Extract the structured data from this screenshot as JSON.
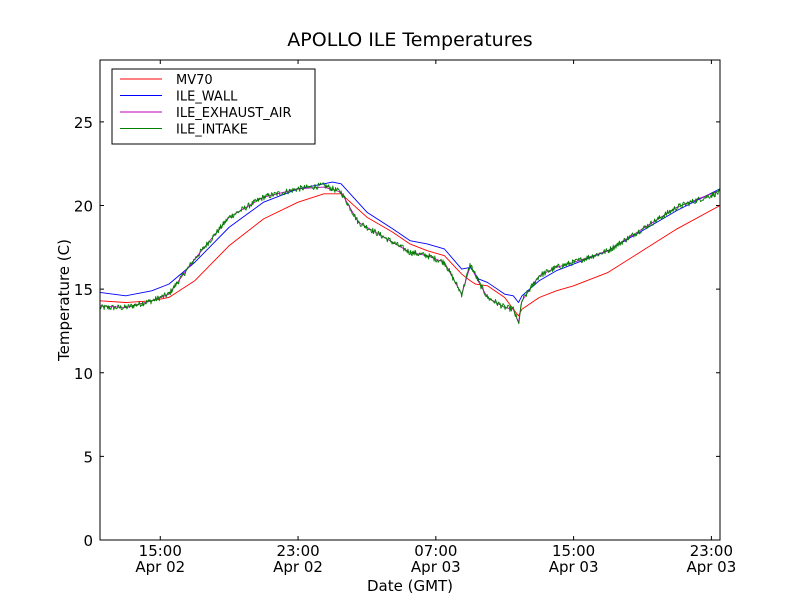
{
  "chart_data": {
    "type": "line",
    "title": "APOLLO ILE Temperatures",
    "xlabel": "Date (GMT)",
    "ylabel": "Temperature (C)",
    "xlim": [
      11.5,
      47.5
    ],
    "ylim": [
      0,
      28.7
    ],
    "yticks": [
      0,
      5,
      10,
      15,
      20,
      25
    ],
    "xticks": [
      {
        "x": 15,
        "line1": "15:00",
        "line2": "Apr 02"
      },
      {
        "x": 23,
        "line1": "23:00",
        "line2": "Apr 02"
      },
      {
        "x": 31,
        "line1": "07:00",
        "line2": "Apr 03"
      },
      {
        "x": 39,
        "line1": "15:00",
        "line2": "Apr 03"
      },
      {
        "x": 47,
        "line1": "23:00",
        "line2": "Apr 03"
      }
    ],
    "legend_position": "top-left",
    "series": [
      {
        "name": "MV70",
        "color": "#ff0000",
        "noise": 0,
        "points": [
          [
            11.5,
            14.3
          ],
          [
            13,
            14.2
          ],
          [
            14.5,
            14.3
          ],
          [
            15.5,
            14.5
          ],
          [
            17,
            15.5
          ],
          [
            19,
            17.6
          ],
          [
            21,
            19.2
          ],
          [
            23,
            20.2
          ],
          [
            24.5,
            20.7
          ],
          [
            25.5,
            20.7
          ],
          [
            27,
            19.3
          ],
          [
            28.5,
            18.4
          ],
          [
            29.5,
            17.7
          ],
          [
            30.5,
            17.3
          ],
          [
            31.5,
            17.0
          ],
          [
            32.5,
            15.9
          ],
          [
            33,
            15.5
          ],
          [
            33.3,
            15.3
          ],
          [
            34,
            15.2
          ],
          [
            35,
            14.5
          ],
          [
            35.5,
            13.8
          ],
          [
            35.8,
            13.4
          ],
          [
            36,
            13.8
          ],
          [
            37,
            14.5
          ],
          [
            38,
            14.9
          ],
          [
            39,
            15.2
          ],
          [
            41,
            16.0
          ],
          [
            43,
            17.3
          ],
          [
            45,
            18.6
          ],
          [
            47.5,
            20.0
          ]
        ]
      },
      {
        "name": "ILE_WALL",
        "color": "#0000ff",
        "noise": 0,
        "points": [
          [
            11.5,
            14.8
          ],
          [
            13,
            14.6
          ],
          [
            14.5,
            14.9
          ],
          [
            15.5,
            15.3
          ],
          [
            17,
            16.6
          ],
          [
            19,
            18.7
          ],
          [
            21,
            20.2
          ],
          [
            23,
            21.0
          ],
          [
            24.5,
            21.3
          ],
          [
            25,
            21.4
          ],
          [
            25.5,
            21.3
          ],
          [
            27,
            19.6
          ],
          [
            28.5,
            18.6
          ],
          [
            29.5,
            17.9
          ],
          [
            30.5,
            17.7
          ],
          [
            31.5,
            17.4
          ],
          [
            32.5,
            16.2
          ],
          [
            33,
            16.3
          ],
          [
            33.5,
            15.6
          ],
          [
            34,
            15.4
          ],
          [
            35,
            14.7
          ],
          [
            35.5,
            14.6
          ],
          [
            35.8,
            14.2
          ],
          [
            36,
            14.6
          ],
          [
            37,
            15.5
          ],
          [
            38,
            16.1
          ],
          [
            39,
            16.5
          ],
          [
            41,
            17.3
          ],
          [
            43,
            18.5
          ],
          [
            45,
            19.7
          ],
          [
            47.5,
            21.0
          ]
        ]
      },
      {
        "name": "ILE_EXHAUST_AIR",
        "color": "#bf00bf",
        "noise": 0,
        "points": [
          [
            11.5,
            14.0
          ],
          [
            13,
            13.9
          ],
          [
            14.5,
            14.3
          ],
          [
            15.5,
            14.7
          ],
          [
            17,
            16.8
          ],
          [
            19,
            19.3
          ],
          [
            21,
            20.5
          ],
          [
            23,
            21.0
          ],
          [
            24.5,
            21.1
          ],
          [
            25.5,
            20.8
          ],
          [
            26.5,
            19.0
          ],
          [
            28.5,
            17.8
          ],
          [
            29.5,
            17.2
          ],
          [
            30.5,
            17.0
          ],
          [
            31.5,
            16.6
          ],
          [
            32.5,
            14.7
          ],
          [
            33,
            16.4
          ],
          [
            33.5,
            15.4
          ],
          [
            34,
            14.5
          ],
          [
            35,
            13.9
          ],
          [
            35.5,
            13.8
          ],
          [
            35.8,
            13.0
          ],
          [
            36,
            14.3
          ],
          [
            37,
            15.8
          ],
          [
            38,
            16.3
          ],
          [
            39,
            16.6
          ],
          [
            41,
            17.3
          ],
          [
            43,
            18.6
          ],
          [
            45,
            19.9
          ],
          [
            47.5,
            20.9
          ]
        ]
      },
      {
        "name": "ILE_INTAKE",
        "color": "#007f00",
        "noise": 0.18,
        "points": [
          [
            11.5,
            13.9
          ],
          [
            13,
            13.9
          ],
          [
            14.5,
            14.3
          ],
          [
            15.5,
            14.7
          ],
          [
            17,
            16.8
          ],
          [
            19,
            19.3
          ],
          [
            21,
            20.5
          ],
          [
            23,
            21.0
          ],
          [
            24.5,
            21.2
          ],
          [
            25.5,
            20.8
          ],
          [
            26.5,
            19.0
          ],
          [
            28.5,
            17.8
          ],
          [
            29.5,
            17.2
          ],
          [
            30.5,
            17.0
          ],
          [
            31.5,
            16.6
          ],
          [
            32.5,
            14.7
          ],
          [
            33,
            16.5
          ],
          [
            33.5,
            15.4
          ],
          [
            34,
            14.5
          ],
          [
            35,
            13.9
          ],
          [
            35.5,
            13.8
          ],
          [
            35.8,
            12.9
          ],
          [
            36,
            14.3
          ],
          [
            37,
            15.8
          ],
          [
            38,
            16.3
          ],
          [
            39,
            16.6
          ],
          [
            41,
            17.3
          ],
          [
            43,
            18.6
          ],
          [
            45,
            19.9
          ],
          [
            47.5,
            20.8
          ]
        ]
      }
    ]
  }
}
